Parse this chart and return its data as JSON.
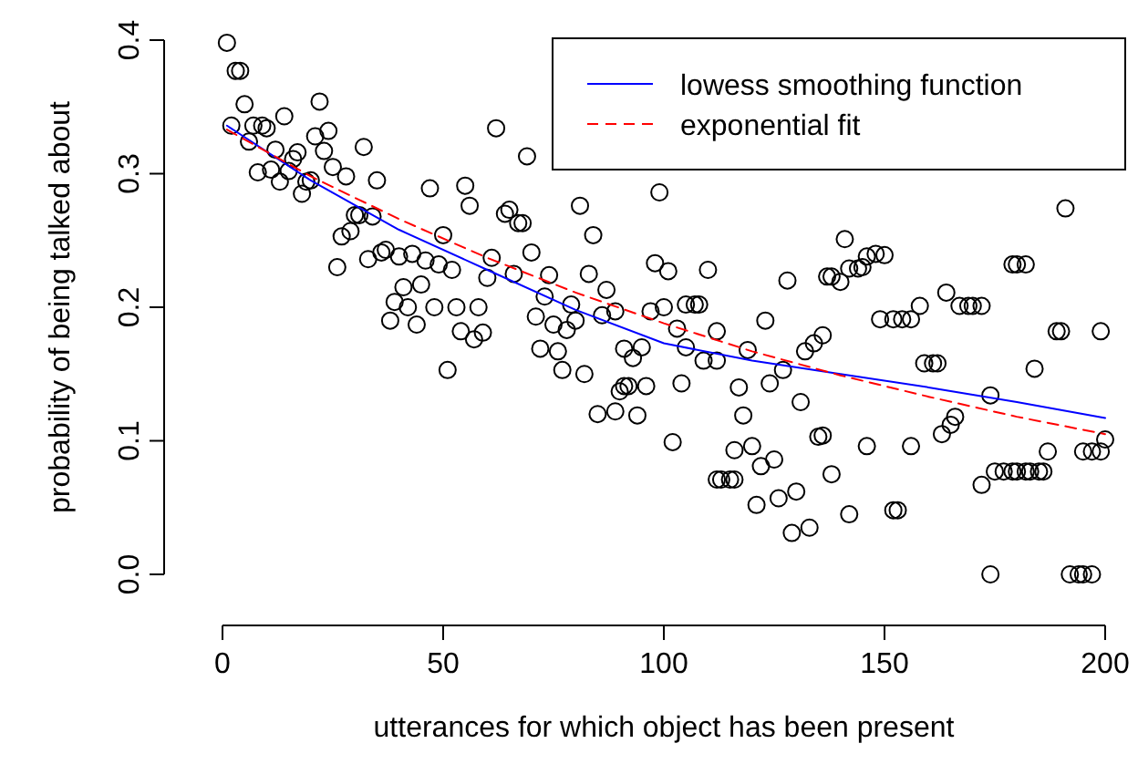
{
  "chart_data": {
    "type": "scatter",
    "xlabel": "utterances for which object has been present",
    "ylabel": "probability of being talked about",
    "xlim": [
      0,
      200
    ],
    "ylim": [
      0,
      0.4
    ],
    "xticks": [
      0,
      50,
      100,
      150,
      200
    ],
    "yticks": [
      {
        "value": 0,
        "label": "0.0"
      },
      0.1,
      0.2,
      0.3,
      0.4
    ],
    "grid": false,
    "legend": "top right",
    "marker": "circle",
    "series": [
      {
        "color": "#000000",
        "x": [
          1,
          2,
          3,
          4,
          5,
          6,
          7,
          8,
          9,
          10,
          11,
          12,
          13,
          14,
          15,
          16,
          17,
          18,
          19,
          20,
          21,
          22,
          23,
          24,
          25,
          26,
          27,
          28,
          29,
          30,
          31,
          32,
          33,
          34,
          35,
          36,
          37,
          38,
          39,
          40,
          41,
          42,
          43,
          44,
          45,
          46,
          47,
          48,
          49,
          50,
          51,
          52,
          53,
          54,
          55,
          56,
          57,
          58,
          59,
          60,
          61,
          62,
          64,
          65,
          66,
          67,
          68,
          69,
          70,
          71,
          72,
          73,
          74,
          75,
          76,
          77,
          78,
          79,
          80,
          81,
          82,
          83,
          84,
          85,
          86,
          87,
          89,
          89,
          90,
          91,
          91,
          92,
          93,
          94,
          95,
          96,
          97,
          98,
          99,
          100,
          101,
          102,
          103,
          104,
          105,
          105,
          107,
          108,
          109,
          110,
          112,
          112,
          112,
          113,
          115,
          116,
          116,
          117,
          118,
          119,
          120,
          121,
          122,
          123,
          124,
          125,
          126,
          127,
          128,
          129,
          130,
          131,
          132,
          133,
          134,
          135,
          136,
          136,
          137,
          138,
          138,
          140,
          141,
          142,
          142,
          144,
          145,
          146,
          146,
          148,
          149,
          150,
          152,
          152,
          153,
          154,
          156,
          156,
          158,
          159,
          161,
          162,
          163,
          164,
          165,
          166,
          167,
          169,
          170,
          172,
          172,
          174,
          174,
          175,
          177,
          179,
          179,
          180,
          180,
          182,
          182,
          183,
          184,
          185,
          186,
          187,
          189,
          190,
          191,
          192,
          194,
          195,
          195,
          197,
          197,
          199,
          199,
          200
        ],
        "values": [
          0.398,
          0.336,
          0.377,
          0.377,
          0.352,
          0.324,
          0.336,
          0.301,
          0.336,
          0.334,
          0.303,
          0.318,
          0.294,
          0.343,
          0.302,
          0.311,
          0.316,
          0.285,
          0.294,
          0.295,
          0.328,
          0.354,
          0.317,
          0.332,
          0.305,
          0.23,
          0.253,
          0.298,
          0.257,
          0.269,
          0.269,
          0.32,
          0.236,
          0.268,
          0.295,
          0.241,
          0.243,
          0.19,
          0.204,
          0.238,
          0.215,
          0.2,
          0.24,
          0.187,
          0.217,
          0.235,
          0.289,
          0.2,
          0.232,
          0.254,
          0.153,
          0.228,
          0.2,
          0.182,
          0.291,
          0.276,
          0.176,
          0.2,
          0.181,
          0.222,
          0.237,
          0.334,
          0.27,
          0.273,
          0.225,
          0.263,
          0.263,
          0.313,
          0.241,
          0.193,
          0.169,
          0.208,
          0.224,
          0.187,
          0.167,
          0.153,
          0.183,
          0.202,
          0.19,
          0.276,
          0.15,
          0.225,
          0.254,
          0.12,
          0.194,
          0.213,
          0.197,
          0.122,
          0.137,
          0.169,
          0.141,
          0.141,
          0.162,
          0.119,
          0.17,
          0.141,
          0.197,
          0.233,
          0.286,
          0.2,
          0.227,
          0.099,
          0.184,
          0.143,
          0.202,
          0.17,
          0.202,
          0.202,
          0.16,
          0.228,
          0.182,
          0.16,
          0.071,
          0.071,
          0.071,
          0.071,
          0.093,
          0.14,
          0.119,
          0.168,
          0.096,
          0.052,
          0.081,
          0.19,
          0.143,
          0.086,
          0.057,
          0.153,
          0.22,
          0.031,
          0.062,
          0.129,
          0.167,
          0.035,
          0.173,
          0.103,
          0.179,
          0.104,
          0.223,
          0.223,
          0.075,
          0.219,
          0.251,
          0.045,
          0.229,
          0.229,
          0.23,
          0.238,
          0.096,
          0.24,
          0.191,
          0.239,
          0.191,
          0.048,
          0.048,
          0.191,
          0.191,
          0.096,
          0.201,
          0.158,
          0.158,
          0.158,
          0.105,
          0.211,
          0.112,
          0.118,
          0.201,
          0.201,
          0.201,
          0.201,
          0.067,
          0.134,
          0,
          0.077,
          0.077,
          0.077,
          0.232,
          0.077,
          0.232,
          0.077,
          0.232,
          0.077,
          0.154,
          0.077,
          0.077,
          0.092,
          0.182,
          0.182,
          0.274,
          0,
          0,
          0,
          0.092,
          0,
          0.092,
          0.092,
          0.182,
          0.101
        ]
      },
      {
        "type": "line",
        "name": "lowess smoothing function",
        "color": "#0000ff",
        "line_style": "solid",
        "marker": "none",
        "x": [
          1,
          20,
          40,
          60,
          80,
          100,
          120,
          140,
          160,
          180,
          200
        ],
        "values": [
          0.336,
          0.295,
          0.258,
          0.228,
          0.198,
          0.173,
          0.16,
          0.15,
          0.14,
          0.129,
          0.117
        ]
      },
      {
        "type": "line",
        "name": "exponential fit",
        "color": "#ff0000",
        "line_style": "dashed",
        "marker": "none",
        "x": [
          1,
          20,
          40,
          60,
          80,
          100,
          120,
          140,
          160,
          180,
          200
        ],
        "values": [
          0.333,
          0.298,
          0.266,
          0.237,
          0.211,
          0.188,
          0.167,
          0.149,
          0.133,
          0.118,
          0.105
        ]
      }
    ]
  }
}
